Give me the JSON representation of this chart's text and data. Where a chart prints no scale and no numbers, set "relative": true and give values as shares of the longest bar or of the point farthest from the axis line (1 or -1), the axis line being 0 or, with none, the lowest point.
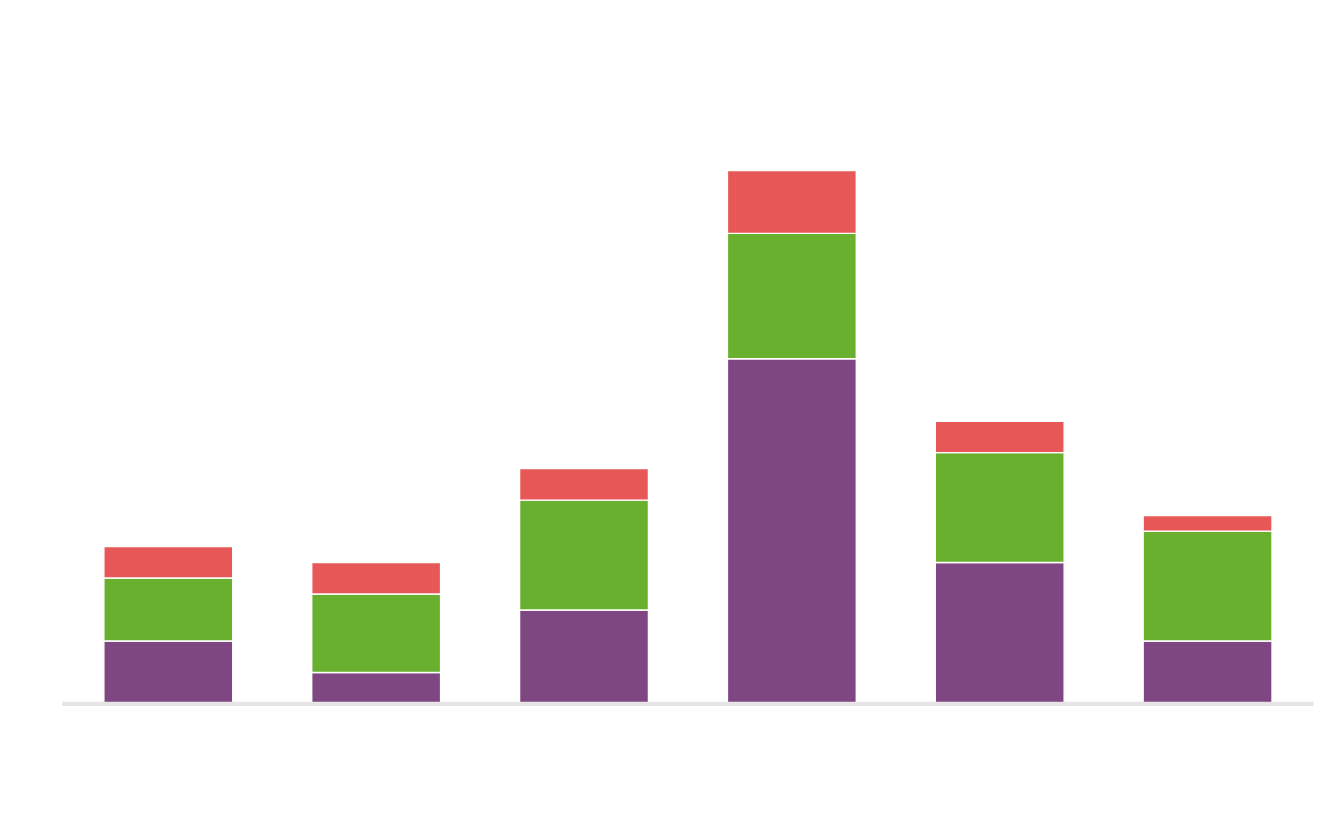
{
  "chart_data": {
    "type": "bar",
    "stacked": true,
    "relative": true,
    "categories": [
      null,
      null,
      null,
      null,
      null,
      null
    ],
    "series": [
      {
        "color": "#7f4782",
        "values": [
          0.118,
          0.059,
          0.176,
          0.647,
          0.265,
          0.118
        ]
      },
      {
        "color": "#69b02f",
        "values": [
          0.118,
          0.147,
          0.206,
          0.235,
          0.206,
          0.206
        ]
      },
      {
        "color": "#e85757",
        "values": [
          0.059,
          0.059,
          0.059,
          0.118,
          0.059,
          0.029
        ]
      }
    ]
  }
}
